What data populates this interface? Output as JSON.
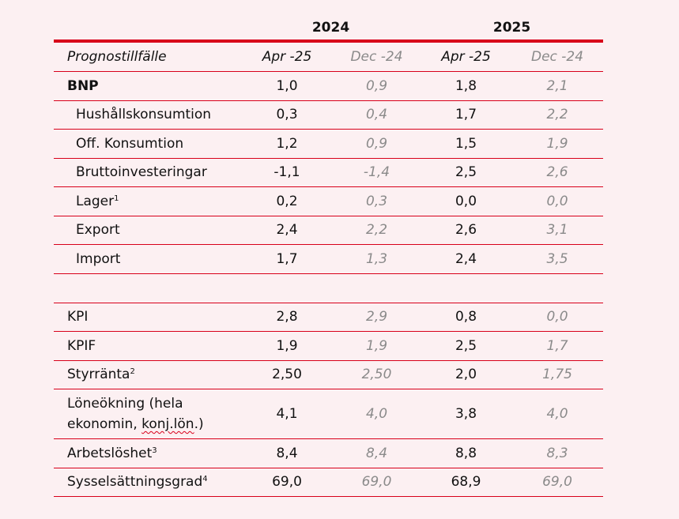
{
  "years": [
    "2024",
    "2025"
  ],
  "header": {
    "label": "Prognostillfälle",
    "cols": [
      "Apr -25",
      "Dec -24",
      "Apr -25",
      "Dec -24"
    ]
  },
  "rows": [
    {
      "label": "BNP",
      "sup": "",
      "values": [
        "1,0",
        "0,9",
        "1,8",
        "2,1"
      ]
    },
    {
      "label": "Hushållskonsumtion",
      "sup": "",
      "values": [
        "0,3",
        "0,4",
        "1,7",
        "2,2"
      ]
    },
    {
      "label": "Off. Konsumtion",
      "sup": "",
      "values": [
        "1,2",
        "0,9",
        "1,5",
        "1,9"
      ]
    },
    {
      "label": "Bruttoinvesteringar",
      "sup": "",
      "values": [
        "-1,1",
        "-1,4",
        "2,5",
        "2,6"
      ]
    },
    {
      "label": "Lager",
      "sup": "1",
      "values": [
        "0,2",
        "0,3",
        "0,0",
        "0,0"
      ]
    },
    {
      "label": "Export",
      "sup": "",
      "values": [
        "2,4",
        "2,2",
        "2,6",
        "3,1"
      ]
    },
    {
      "label": "Import",
      "sup": "",
      "values": [
        "1,7",
        "1,3",
        "2,4",
        "3,5"
      ]
    },
    {
      "label": "KPI",
      "sup": "",
      "values": [
        "2,8",
        "2,9",
        "0,8",
        "0,0"
      ]
    },
    {
      "label": "KPIF",
      "sup": "",
      "values": [
        "1,9",
        "1,9",
        "2,5",
        "1,7"
      ]
    },
    {
      "label": "Styrränta",
      "sup": "2",
      "values": [
        "2,50",
        "2,50",
        "2,0",
        "1,75"
      ]
    },
    {
      "label_line1": "Löneökning (hela",
      "label_line2a": "ekonomin, ",
      "label_line2b": "konj.lön",
      "label_line2c": ".)",
      "values": [
        "4,1",
        "4,0",
        "3,8",
        "4,0"
      ]
    },
    {
      "label": "Arbetslöshet",
      "sup": "3",
      "values": [
        "8,4",
        "8,4",
        "8,8",
        "8,3"
      ]
    },
    {
      "label": "Sysselsättningsgrad",
      "sup": "4",
      "values": [
        "69,0",
        "69,0",
        "68,9",
        "69,0"
      ]
    }
  ]
}
